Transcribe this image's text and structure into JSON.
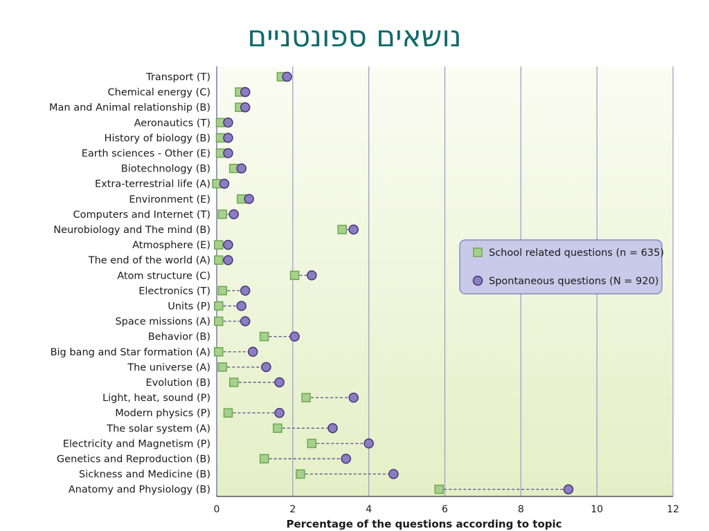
{
  "slide": {
    "title": "נושאים ספונטניים"
  },
  "chart_data": {
    "type": "scatter",
    "xlabel": "Percentage of the questions according to topic",
    "xlim": [
      0,
      12
    ],
    "xticks": [
      0,
      2,
      4,
      6,
      8,
      10,
      12
    ],
    "grid": true,
    "legend_position": "right",
    "categories": [
      "Transport (T)",
      "Chemical energy (C)",
      "Man and Animal relationship (B)",
      "Aeronautics (T)",
      "History of biology (B)",
      "Earth sciences - Other (E)",
      "Biotechnology (B)",
      "Extra-terrestrial life (A)",
      "Environment (E)",
      "Computers and Internet (T)",
      "Neurobiology and The mind (B)",
      "Atmosphere (E)",
      "The end of the world (A)",
      "Atom structure (C)",
      "Electronics (T)",
      "Units (P)",
      "Space missions (A)",
      "Behavior (B)",
      "Big bang and Star formation (A)",
      "The universe (A)",
      "Evolution (B)",
      "Light, heat, sound (P)",
      "Modern physics (P)",
      "The solar system (A)",
      "Electricity and Magnetism (P)",
      "Genetics and Reproduction (B)",
      "Sickness and Medicine (B)",
      "Anatomy and Physiology (B)"
    ],
    "series": [
      {
        "name": "School related questions (n = 635)",
        "marker": "square",
        "color": "#a8d08d",
        "stroke": "#6aa84f",
        "values": [
          1.7,
          0.6,
          0.6,
          0.1,
          0.1,
          0.1,
          0.45,
          0.0,
          0.65,
          0.15,
          3.3,
          0.05,
          0.05,
          2.05,
          0.15,
          0.05,
          0.05,
          1.25,
          0.05,
          0.15,
          0.45,
          2.35,
          0.3,
          1.6,
          2.5,
          1.25,
          2.2,
          5.85
        ]
      },
      {
        "name": "Spontaneous questions (N = 920)",
        "marker": "circle",
        "color": "#8e7cc3",
        "stroke": "#3f3577",
        "values": [
          1.85,
          0.75,
          0.75,
          0.3,
          0.3,
          0.3,
          0.65,
          0.2,
          0.85,
          0.45,
          3.6,
          0.3,
          0.3,
          2.5,
          0.75,
          0.65,
          0.75,
          2.05,
          0.95,
          1.3,
          1.65,
          3.6,
          1.65,
          3.05,
          4.0,
          3.4,
          4.65,
          9.25
        ]
      }
    ]
  }
}
